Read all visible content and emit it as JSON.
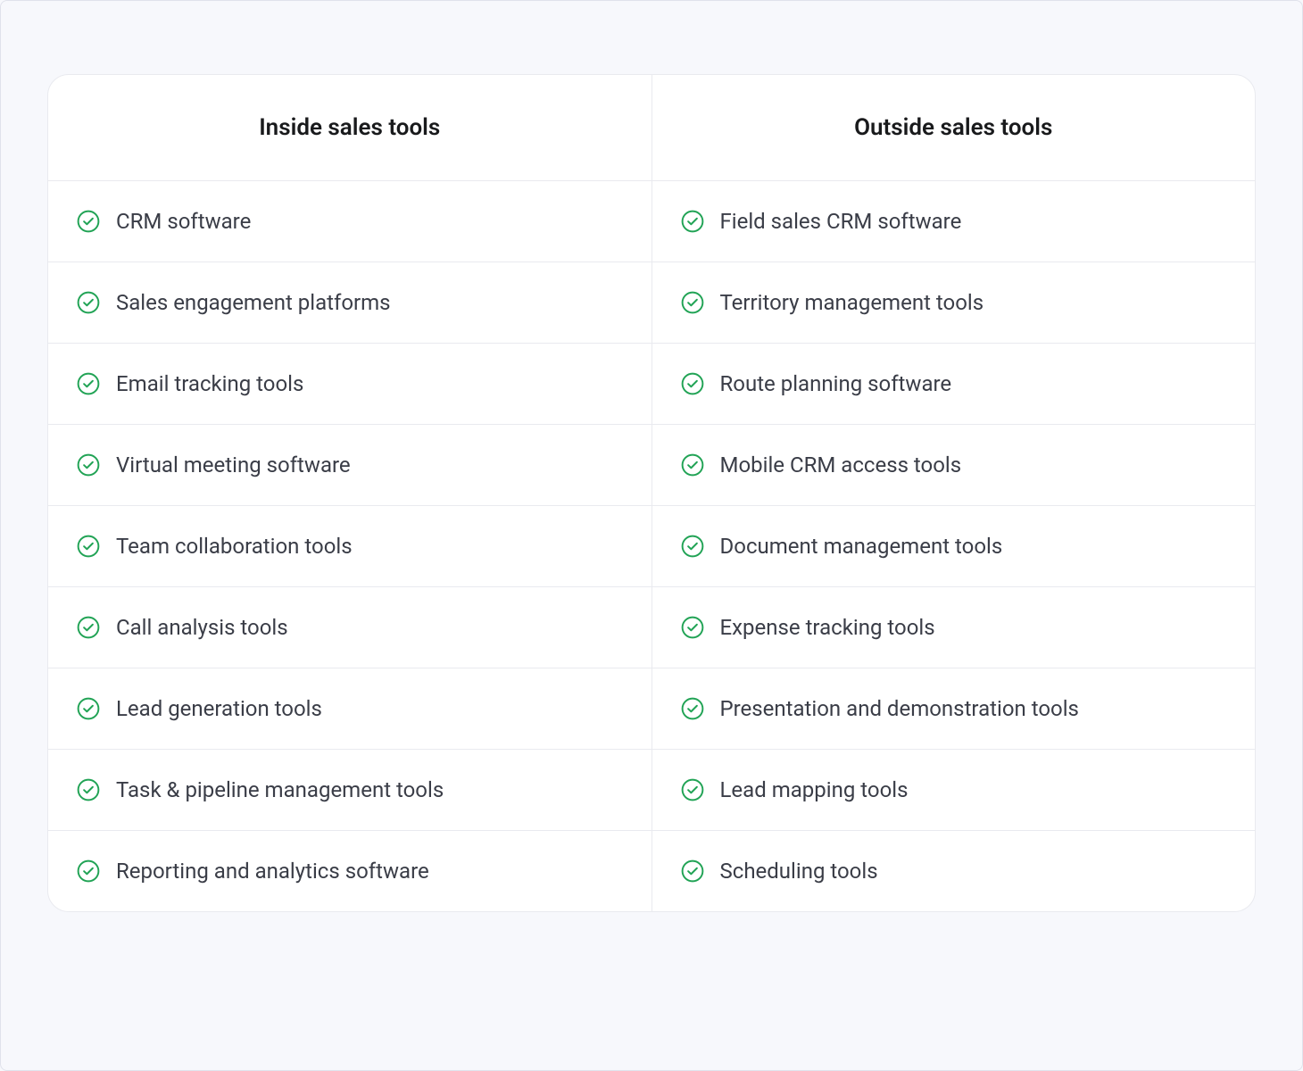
{
  "table": {
    "type": "table",
    "columns": [
      {
        "header": "Inside sales tools"
      },
      {
        "header": "Outside sales tools"
      }
    ],
    "rows": [
      [
        "CRM software",
        "Field sales CRM software"
      ],
      [
        "Sales engagement platforms",
        "Territory management tools"
      ],
      [
        "Email tracking tools",
        "Route planning software"
      ],
      [
        "Virtual meeting software",
        "Mobile CRM access tools"
      ],
      [
        "Team collaboration tools",
        "Document management tools"
      ],
      [
        "Call analysis tools",
        "Expense tracking tools"
      ],
      [
        "Lead generation tools",
        "Presentation and demonstration tools"
      ],
      [
        "Task & pipeline management tools",
        "Lead mapping tools"
      ],
      [
        "Reporting and analytics software",
        "Scheduling tools"
      ]
    ],
    "styling": {
      "icon_color": "#21a355",
      "text_color": "#3a3d47",
      "header_text_color": "#191a1c",
      "border_color": "#e9eaef",
      "background_color": "#ffffff",
      "page_background_color": "#f7f8fc",
      "border_radius": 24,
      "header_fontsize": 26,
      "cell_fontsize": 24,
      "header_fontweight": 600,
      "cell_padding": "31px 32px",
      "header_padding": "44px 20px"
    }
  }
}
